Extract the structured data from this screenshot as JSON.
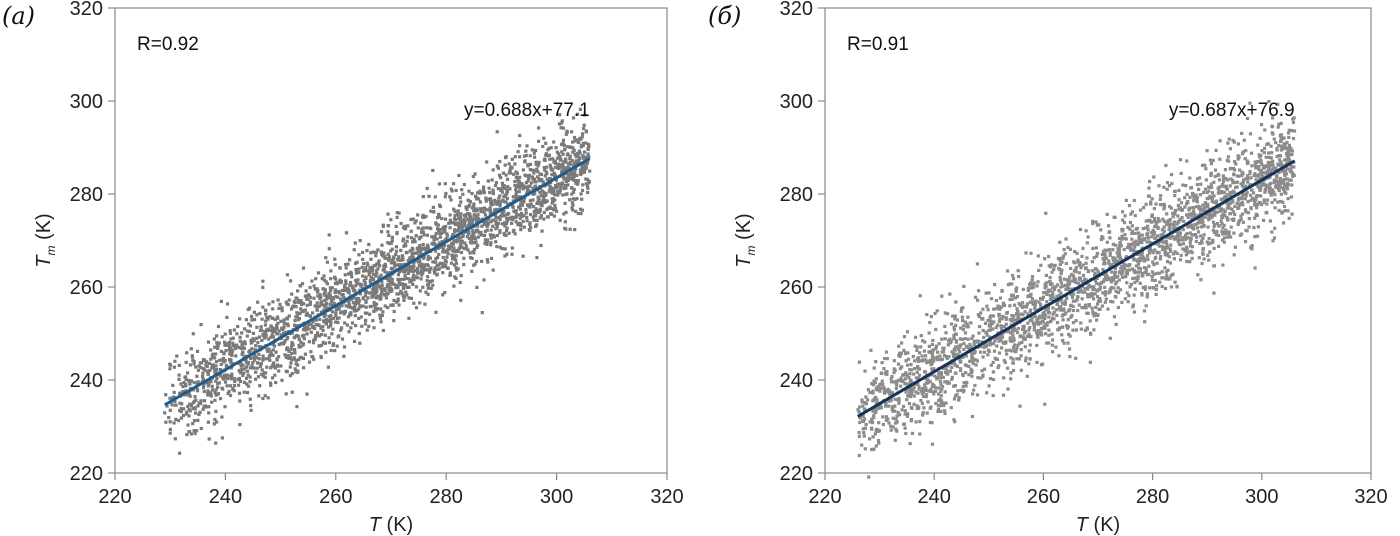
{
  "chart_data": [
    {
      "type": "scatter",
      "panel_label": "(а)",
      "r_text": "R=0.92",
      "equation_text": "y=0.688x+77.1",
      "fit": {
        "slope": 0.688,
        "intercept": 77.1,
        "x_start": 229,
        "x_end": 306
      },
      "xlabel_var": "T",
      "xlabel_unit": " (K)",
      "ylabel_var": "T",
      "ylabel_sub": "m",
      "ylabel_unit": " (K)",
      "xlim": [
        220,
        320
      ],
      "ylim": [
        220,
        320
      ],
      "xticks": [
        220,
        240,
        260,
        280,
        300,
        320
      ],
      "yticks": [
        220,
        240,
        260,
        280,
        300,
        320
      ],
      "cloud": {
        "x_min": 229,
        "x_max": 306,
        "spread": 5.2
      },
      "point_color": "#7a7a7a",
      "line_color": "#1f5c8f"
    },
    {
      "type": "scatter",
      "panel_label": "(б)",
      "r_text": "R=0.91",
      "equation_text": "y=0.687x+76.9",
      "fit": {
        "slope": 0.687,
        "intercept": 76.9,
        "x_start": 226,
        "x_end": 306
      },
      "xlabel_var": "T",
      "xlabel_unit": " (K)",
      "ylabel_var": "T",
      "ylabel_sub": "m",
      "ylabel_unit": " (K)",
      "xlim": [
        220,
        320
      ],
      "ylim": [
        220,
        320
      ],
      "xticks": [
        220,
        240,
        260,
        280,
        300,
        320
      ],
      "yticks": [
        220,
        240,
        260,
        280,
        300,
        320
      ],
      "cloud": {
        "x_min": 226,
        "x_max": 306,
        "spread": 5.6
      },
      "point_color": "#8c8c8c",
      "line_color": "#15325a"
    }
  ]
}
